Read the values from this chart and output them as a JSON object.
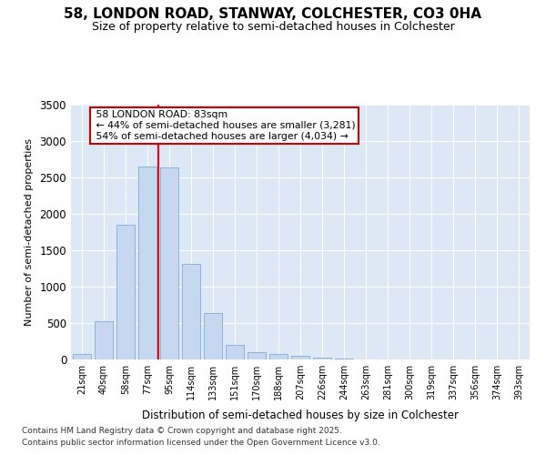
{
  "title_line1": "58, LONDON ROAD, STANWAY, COLCHESTER, CO3 0HA",
  "title_line2": "Size of property relative to semi-detached houses in Colchester",
  "xlabel": "Distribution of semi-detached houses by size in Colchester",
  "ylabel": "Number of semi-detached properties",
  "categories": [
    "21sqm",
    "40sqm",
    "58sqm",
    "77sqm",
    "95sqm",
    "114sqm",
    "133sqm",
    "151sqm",
    "170sqm",
    "188sqm",
    "207sqm",
    "226sqm",
    "244sqm",
    "263sqm",
    "281sqm",
    "300sqm",
    "319sqm",
    "337sqm",
    "356sqm",
    "374sqm",
    "393sqm"
  ],
  "values": [
    70,
    530,
    1850,
    2650,
    2640,
    1310,
    640,
    200,
    100,
    70,
    50,
    30,
    10,
    5,
    2,
    2,
    1,
    0,
    0,
    0,
    0
  ],
  "bar_color": "#c5d8f0",
  "bar_edge_color": "#7aadd4",
  "red_line_x": 3.5,
  "annotation_title": "58 LONDON ROAD: 83sqm",
  "annotation_line1": "← 44% of semi-detached houses are smaller (3,281)",
  "annotation_line2": "54% of semi-detached houses are larger (4,034) →",
  "annotation_box_color": "#ffffff",
  "annotation_box_edge": "#cc0000",
  "footer_line1": "Contains HM Land Registry data © Crown copyright and database right 2025.",
  "footer_line2": "Contains public sector information licensed under the Open Government Licence v3.0.",
  "ylim": [
    0,
    3500
  ],
  "fig_background": "#ffffff",
  "plot_background": "#dce8f5",
  "grid_color": "#ffffff",
  "yticks": [
    0,
    500,
    1000,
    1500,
    2000,
    2500,
    3000,
    3500
  ]
}
